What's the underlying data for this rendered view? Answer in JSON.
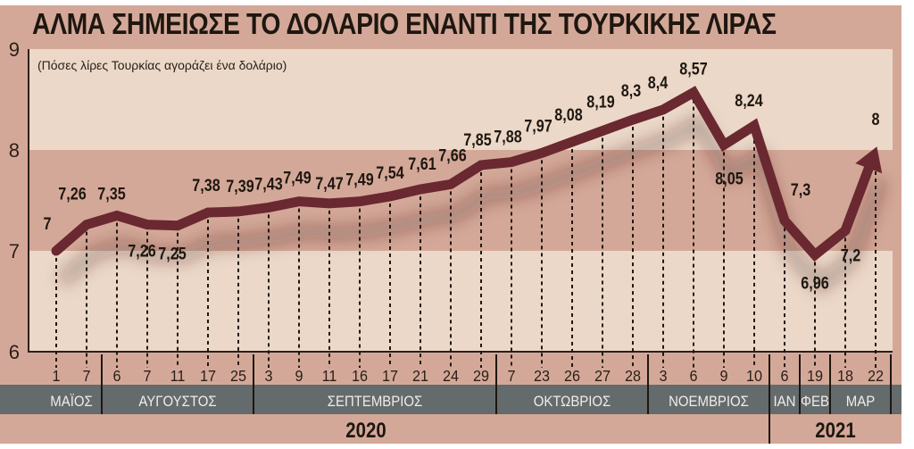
{
  "title": "ΑΛΜΑ ΣΗΜΕΙΩΣΕ ΤΟ ΔΟΛΑΡΙΟ ΕΝΑΝΤΙ ΤΗΣ ΤΟΥΡΚΙΚΗΣ ΛΙΡΑΣ",
  "subtitle": "(Πόσες λίρες Τουρκίας αγοράζει ένα δολάριο)",
  "colors": {
    "frame": "#d4a898",
    "band_light": "#ecd8c8",
    "band_dark": "#d4a898",
    "line": "#6a2830",
    "month_bar": "#646b6d",
    "text": "#1e1710"
  },
  "chart_data": {
    "type": "line",
    "title": "ΑΛΜΑ ΣΗΜΕΙΩΣΕ ΤΟ ΔΟΛΑΡΙΟ ΕΝΑΝΤΙ ΤΗΣ ΤΟΥΡΚΙΚΗΣ ΛΙΡΑΣ",
    "subtitle": "(Πόσες λίρες Τουρκίας αγοράζει ένα δολάριο)",
    "xlabel": "",
    "ylabel": "",
    "ylim": [
      6,
      9
    ],
    "yticks": [
      "6",
      "7",
      "8",
      "9"
    ],
    "grid": false,
    "categories": [
      "1",
      "7",
      "6",
      "7",
      "11",
      "17",
      "25",
      "3",
      "9",
      "11",
      "16",
      "17",
      "21",
      "24",
      "29",
      "7",
      "23",
      "26",
      "27",
      "28",
      "3",
      "6",
      "9",
      "10",
      "6",
      "19",
      "18",
      "22"
    ],
    "values": [
      7,
      7.26,
      7.35,
      7.26,
      7.25,
      7.38,
      7.39,
      7.43,
      7.49,
      7.47,
      7.49,
      7.54,
      7.61,
      7.66,
      7.85,
      7.88,
      7.97,
      8.08,
      8.19,
      8.3,
      8.4,
      8.57,
      8.05,
      8.24,
      7.3,
      6.96,
      7.2,
      8
    ],
    "value_labels": [
      "7",
      "7,26",
      "7,35",
      "7,26",
      "7,25",
      "7,38",
      "7,39",
      "7,43",
      "7,49",
      "7,47",
      "7,49",
      "7,54",
      "7,61",
      "7,66",
      "7,85",
      "7,88",
      "7,97",
      "8,08",
      "8,19",
      "8,3",
      "8,4",
      "8,57",
      "8,05",
      "8,24",
      "7,3",
      "6,96",
      "7,2",
      "8"
    ],
    "months": [
      {
        "label": "ΜΑΪΟΣ",
        "count": 2
      },
      {
        "label": "ΑΥΓΟΥΣΤΟΣ",
        "count": 5
      },
      {
        "label": "ΣΕΠΤΕΜΒΡΙΟΣ",
        "count": 8
      },
      {
        "label": "ΟΚΤΩΒΡΙΟΣ",
        "count": 5
      },
      {
        "label": "ΝΟΕΜΒΡΙΟΣ",
        "count": 4
      },
      {
        "label": "ΙΑΝ",
        "count": 1
      },
      {
        "label": "ΦΕΒ",
        "count": 1
      },
      {
        "label": "ΜΑΡ",
        "count": 2
      }
    ],
    "years": [
      {
        "label": "2020",
        "count": 24
      },
      {
        "label": "2021",
        "count": 4
      }
    ]
  }
}
